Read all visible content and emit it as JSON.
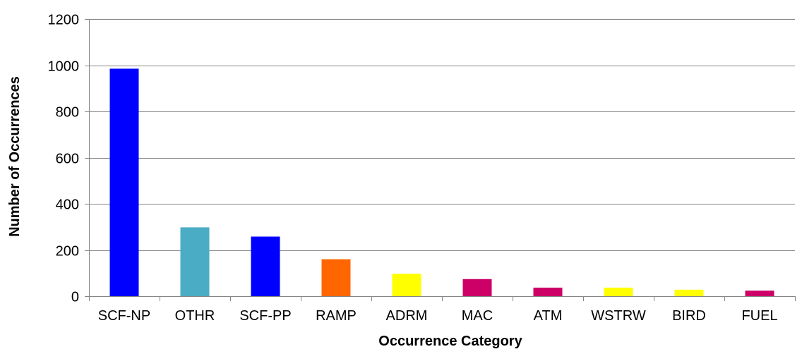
{
  "chart_data": {
    "type": "bar",
    "title": "",
    "xlabel": "Occurrence Category",
    "ylabel": "Number of Occurrences",
    "categories": [
      "SCF-NP",
      "OTHR",
      "SCF-PP",
      "RAMP",
      "ADRM",
      "MAC",
      "ATM",
      "WSTRW",
      "BIRD",
      "FUEL"
    ],
    "values": [
      985,
      298,
      258,
      160,
      97,
      74,
      37,
      37,
      28,
      24
    ],
    "bar_colors": [
      "#0000FF",
      "#4BACC6",
      "#0000FF",
      "#FF6600",
      "#FFFF00",
      "#CC0066",
      "#CC0066",
      "#FFFF00",
      "#FFFF00",
      "#CC0066"
    ],
    "ylim": [
      0,
      1200
    ],
    "yticks": [
      0,
      200,
      400,
      600,
      800,
      1000,
      1200
    ],
    "grid": true,
    "legend": "none"
  }
}
